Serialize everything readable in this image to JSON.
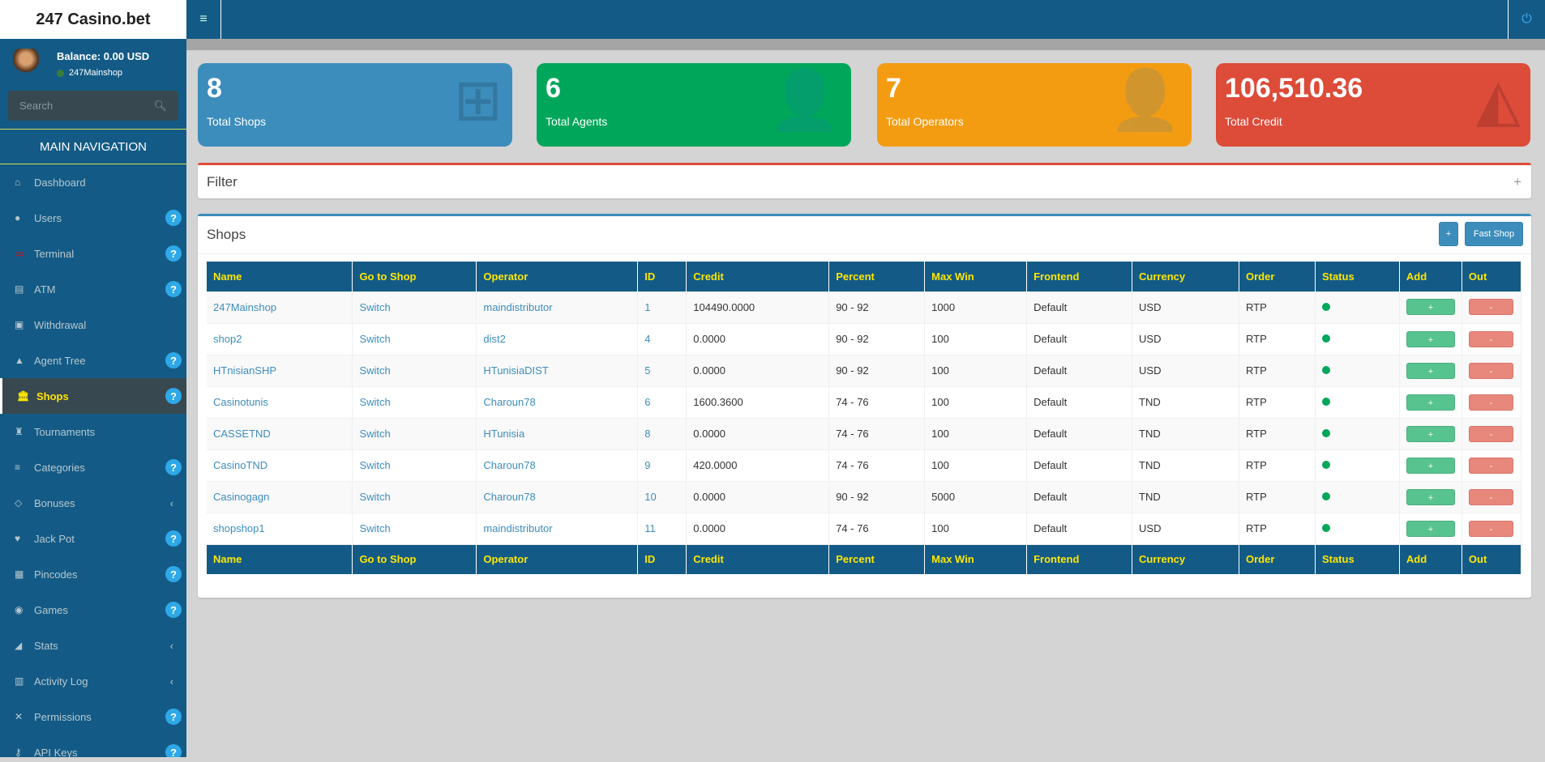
{
  "app": {
    "title": "247 Casino.bet"
  },
  "user": {
    "balance": "Balance: 0.00 USD",
    "name": "247Mainshop"
  },
  "search": {
    "placeholder": "Search"
  },
  "nav": {
    "heading": "MAIN NAVIGATION",
    "items": [
      {
        "label": "Dashboard",
        "icon": "home-icon",
        "glyph": "⌂",
        "badge": ""
      },
      {
        "label": "Users",
        "icon": "user-icon",
        "glyph": "●",
        "badge": "?"
      },
      {
        "label": "Terminal",
        "icon": "monitor-icon",
        "glyph": "▭",
        "badge": "?"
      },
      {
        "label": "ATM",
        "icon": "credit-card-icon",
        "glyph": "▤",
        "badge": "?"
      },
      {
        "label": "Withdrawal",
        "icon": "money-icon",
        "glyph": "▣",
        "badge": ""
      },
      {
        "label": "Agent Tree",
        "icon": "tree-icon",
        "glyph": "▲",
        "badge": "?"
      },
      {
        "label": "Shops",
        "icon": "bank-icon",
        "glyph": "🏛",
        "badge": "?",
        "active": true
      },
      {
        "label": "Tournaments",
        "icon": "trophy-icon",
        "glyph": "♜",
        "badge": ""
      },
      {
        "label": "Categories",
        "icon": "list-icon",
        "glyph": "≡",
        "badge": "?"
      },
      {
        "label": "Bonuses",
        "icon": "diamond-icon",
        "glyph": "◇",
        "badge": "",
        "chevron": "‹"
      },
      {
        "label": "Jack Pot",
        "icon": "heartbeat-icon",
        "glyph": "♥",
        "badge": "?"
      },
      {
        "label": "Pincodes",
        "icon": "qrcode-icon",
        "glyph": "▦",
        "badge": "?"
      },
      {
        "label": "Games",
        "icon": "gamepad-icon",
        "glyph": "◉",
        "badge": "?"
      },
      {
        "label": "Stats",
        "icon": "area-chart-icon",
        "glyph": "◢",
        "badge": "",
        "chevron": "‹"
      },
      {
        "label": "Activity Log",
        "icon": "bar-chart-icon",
        "glyph": "▥",
        "badge": "",
        "chevron": "‹"
      },
      {
        "label": "Permissions",
        "icon": "bell-slash-icon",
        "glyph": "✕",
        "badge": "?"
      },
      {
        "label": "API Keys",
        "icon": "key-icon",
        "glyph": "⚷",
        "badge": "?"
      }
    ]
  },
  "cards": [
    {
      "value": "8",
      "label": "Total Shops",
      "color": "#3c8dbc",
      "icon": "sitemap-icon",
      "glyph": "⊞"
    },
    {
      "value": "6",
      "label": "Total Agents",
      "color": "#00a65a",
      "icon": "user-icon",
      "glyph": "👤"
    },
    {
      "value": "7",
      "label": "Total Operators",
      "color": "#f39c12",
      "icon": "user-icon",
      "glyph": "👤"
    },
    {
      "value": "106,510.36",
      "label": "Total Credit",
      "color": "#dd4b39",
      "icon": "area-chart-icon",
      "glyph": "◭"
    }
  ],
  "filter": {
    "title": "Filter",
    "toggle": "+"
  },
  "shops": {
    "title": "Shops",
    "add_label": "+",
    "fast_shop_label": "Fast Shop",
    "columns": [
      "Name",
      "Go to Shop",
      "Operator",
      "ID",
      "Credit",
      "Percent",
      "Max Win",
      "Frontend",
      "Currency",
      "Order",
      "Status",
      "Add",
      "Out"
    ],
    "rows": [
      {
        "name": "247Mainshop",
        "go": "Switch",
        "operator": "maindistributor",
        "id": "1",
        "credit": "104490.0000",
        "percent": "90 - 92",
        "maxwin": "1000",
        "frontend": "Default",
        "currency": "USD",
        "order": "RTP",
        "status": "active",
        "add": "+",
        "out": "-"
      },
      {
        "name": "shop2",
        "go": "Switch",
        "operator": "dist2",
        "id": "4",
        "credit": "0.0000",
        "percent": "90 - 92",
        "maxwin": "100",
        "frontend": "Default",
        "currency": "USD",
        "order": "RTP",
        "status": "active",
        "add": "+",
        "out": "-"
      },
      {
        "name": "HTnisianSHP",
        "go": "Switch",
        "operator": "HTunisiaDIST",
        "id": "5",
        "credit": "0.0000",
        "percent": "90 - 92",
        "maxwin": "100",
        "frontend": "Default",
        "currency": "USD",
        "order": "RTP",
        "status": "active",
        "add": "+",
        "out": "-"
      },
      {
        "name": "Casinotunis",
        "go": "Switch",
        "operator": "Charoun78",
        "id": "6",
        "credit": "1600.3600",
        "percent": "74 - 76",
        "maxwin": "100",
        "frontend": "Default",
        "currency": "TND",
        "order": "RTP",
        "status": "active",
        "add": "+",
        "out": "-"
      },
      {
        "name": "CASSETND",
        "go": "Switch",
        "operator": "HTunisia",
        "id": "8",
        "credit": "0.0000",
        "percent": "74 - 76",
        "maxwin": "100",
        "frontend": "Default",
        "currency": "TND",
        "order": "RTP",
        "status": "active",
        "add": "+",
        "out": "-"
      },
      {
        "name": "CasinoTND",
        "go": "Switch",
        "operator": "Charoun78",
        "id": "9",
        "credit": "420.0000",
        "percent": "74 - 76",
        "maxwin": "100",
        "frontend": "Default",
        "currency": "TND",
        "order": "RTP",
        "status": "active",
        "add": "+",
        "out": "-"
      },
      {
        "name": "Casinogagn",
        "go": "Switch",
        "operator": "Charoun78",
        "id": "10",
        "credit": "0.0000",
        "percent": "90 - 92",
        "maxwin": "5000",
        "frontend": "Default",
        "currency": "TND",
        "order": "RTP",
        "status": "active",
        "add": "+",
        "out": "-"
      },
      {
        "name": "shopshop1",
        "go": "Switch",
        "operator": "maindistributor",
        "id": "11",
        "credit": "0.0000",
        "percent": "74 - 76",
        "maxwin": "100",
        "frontend": "Default",
        "currency": "USD",
        "order": "RTP",
        "status": "active",
        "add": "+",
        "out": "-"
      }
    ]
  }
}
